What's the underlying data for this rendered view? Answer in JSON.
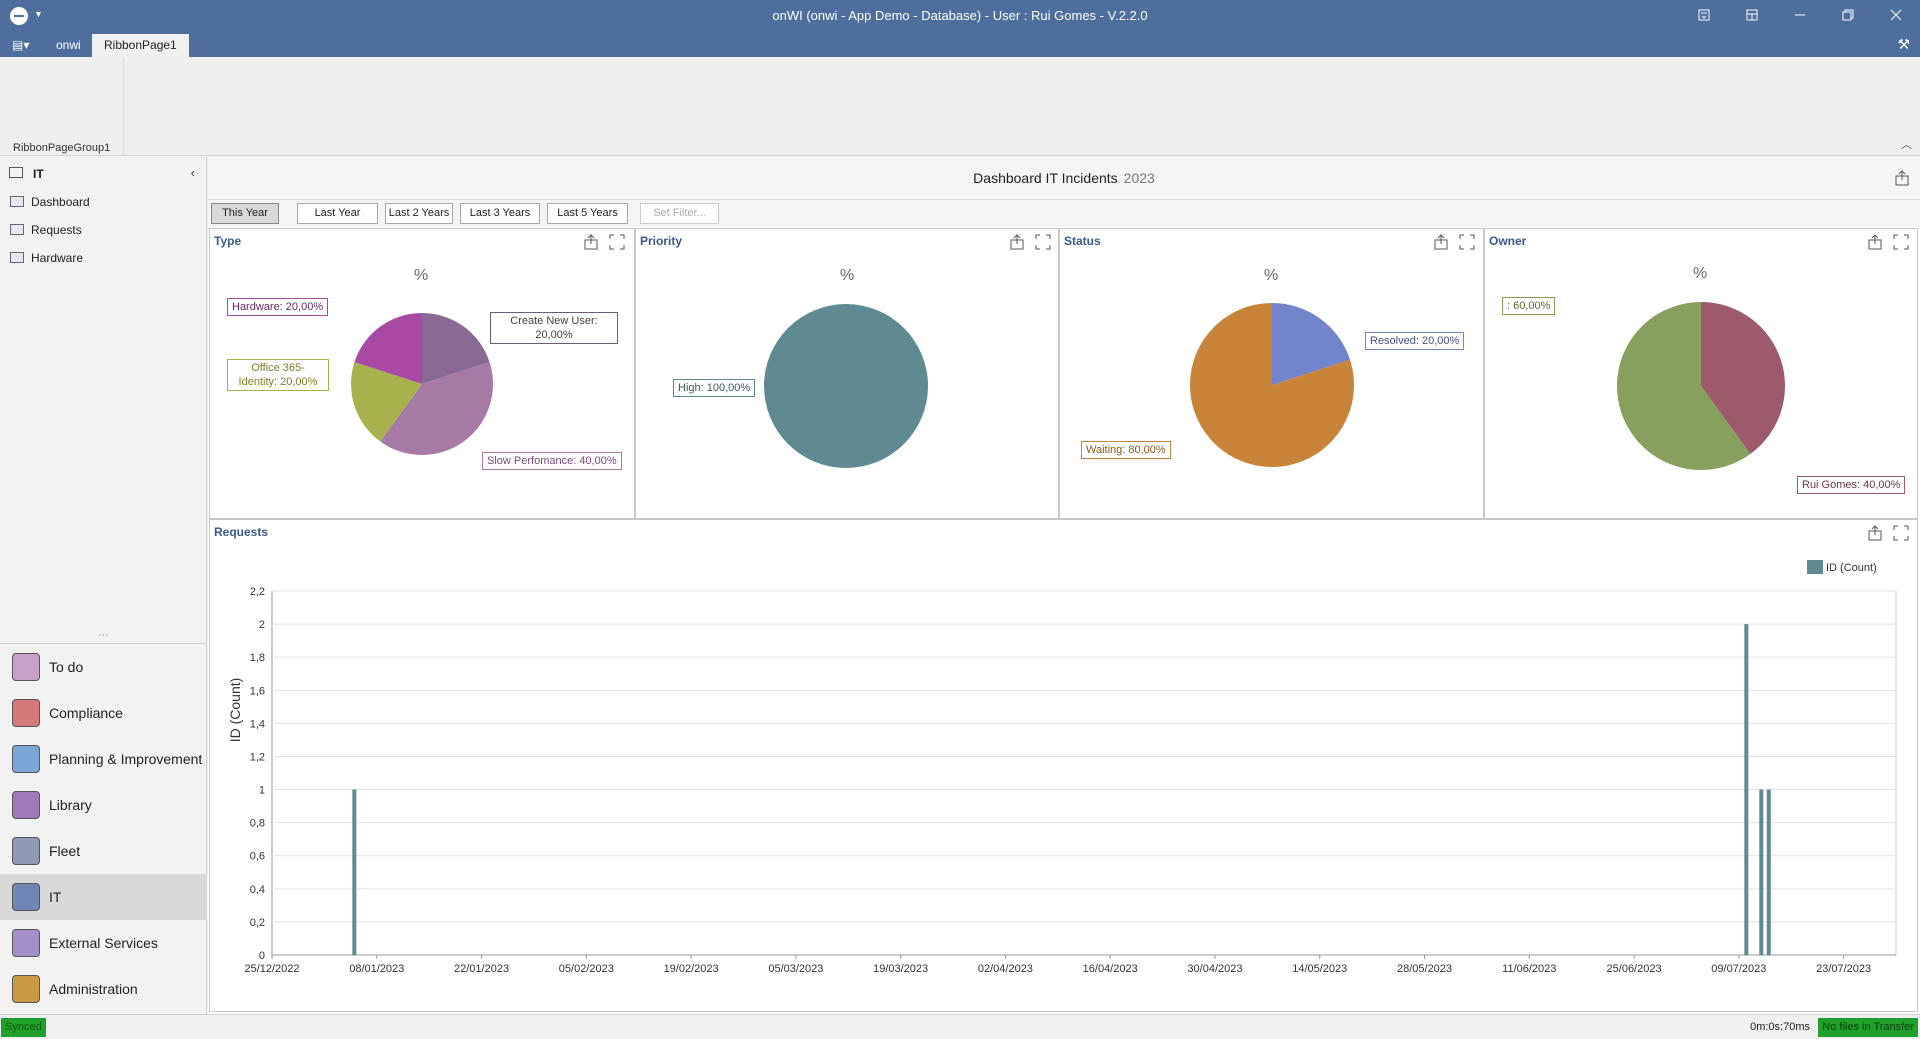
{
  "window": {
    "title": "onWI (onwi - App Demo - Database) - User : Rui Gomes - V.2.2.0"
  },
  "ribbon": {
    "tabs": [
      "onwi",
      "RibbonPage1"
    ],
    "active_tab": "RibbonPage1",
    "group_label": "RibbonPageGroup1"
  },
  "nav": {
    "header": "IT",
    "items": [
      "Dashboard",
      "Requests",
      "Hardware"
    ],
    "groups": [
      {
        "label": "To do",
        "color": "#c8a0c8"
      },
      {
        "label": "Compliance",
        "color": "#d47a7a"
      },
      {
        "label": "Planning & Improvement",
        "color": "#7aa7d8"
      },
      {
        "label": "Library",
        "color": "#a07ab8"
      },
      {
        "label": "Fleet",
        "color": "#8f9bb6"
      },
      {
        "label": "IT",
        "color": "#6f86b6"
      },
      {
        "label": "External Services",
        "color": "#a58fc8"
      },
      {
        "label": "Administration",
        "color": "#c99a3f"
      }
    ],
    "selected_group": "IT"
  },
  "dashboard": {
    "title": "Dashboard IT Incidents",
    "year": "2023",
    "filters": [
      "This Year",
      "Last Year",
      "Last 2 Years",
      "Last 3 Years",
      "Last 5 Years",
      "Set Filter..."
    ],
    "active_filter": "This Year"
  },
  "panels": {
    "type": "Type",
    "priority": "Priority",
    "status": "Status",
    "owner": "Owner",
    "requests": "Requests"
  },
  "chart_data": [
    {
      "type": "pie",
      "name": "Type",
      "title": "%",
      "slices": [
        {
          "label": "Create New User",
          "value": 20,
          "color": "#8a6a94",
          "text": "Create     New     User:\n20,00%"
        },
        {
          "label": "Slow Perfomance",
          "value": 40,
          "color": "#a77aa6",
          "text": "Slow Perfomance: 40,00%"
        },
        {
          "label": "Office 365-Identity",
          "value": 20,
          "color": "#a8b24c",
          "text": "Office    365-\nIdentity:    20,00%"
        },
        {
          "label": "Hardware",
          "value": 20,
          "color": "#a84aa4",
          "text": "Hardware: 20,00%"
        }
      ]
    },
    {
      "type": "pie",
      "name": "Priority",
      "title": "%",
      "slices": [
        {
          "label": "High",
          "value": 100,
          "color": "#5f8a92",
          "text": "High: 100,00%"
        }
      ]
    },
    {
      "type": "pie",
      "name": "Status",
      "title": "%",
      "slices": [
        {
          "label": "Resolved",
          "value": 20,
          "color": "#7284cc",
          "text": "Resolved: 20,00%"
        },
        {
          "label": "Waiting",
          "value": 80,
          "color": "#c8853a",
          "text": "Waiting: 80,00%"
        }
      ]
    },
    {
      "type": "pie",
      "name": "Owner",
      "title": "%",
      "slices": [
        {
          "label": "Rui Gomes",
          "value": 40,
          "color": "#9c5a6c",
          "text": "Rui Gomes: 40,00%"
        },
        {
          "label": "",
          "value": 60,
          "color": "#87a05e",
          "text": ": 60,00%"
        }
      ]
    },
    {
      "type": "bar",
      "name": "Requests",
      "ylabel": "ID (Count)",
      "legend": "ID (Count)",
      "color": "#5f8a92",
      "ylim": [
        0,
        2.2
      ],
      "yticks": [
        "0",
        "0,2",
        "0,4",
        "0,6",
        "0,8",
        "1",
        "1,2",
        "1,4",
        "1,6",
        "1,8",
        "2",
        "2,2"
      ],
      "xstart": "2022-12-25",
      "xend": "2023-07-30",
      "xticks": [
        "25/12/2022",
        "08/01/2023",
        "22/01/2023",
        "05/02/2023",
        "19/02/2023",
        "05/03/2023",
        "19/03/2023",
        "02/04/2023",
        "16/04/2023",
        "30/04/2023",
        "14/05/2023",
        "28/05/2023",
        "11/06/2023",
        "25/06/2023",
        "09/07/2023",
        "23/07/2023"
      ],
      "bars": [
        {
          "date": "2023-01-05",
          "value": 1
        },
        {
          "date": "2023-07-10",
          "value": 2
        },
        {
          "date": "2023-07-12",
          "value": 1
        },
        {
          "date": "2023-07-13",
          "value": 1
        }
      ]
    }
  ],
  "status_bar": {
    "synced": "Synced",
    "time": "0m:0s:70ms",
    "transfer": "No files in Transfer"
  }
}
